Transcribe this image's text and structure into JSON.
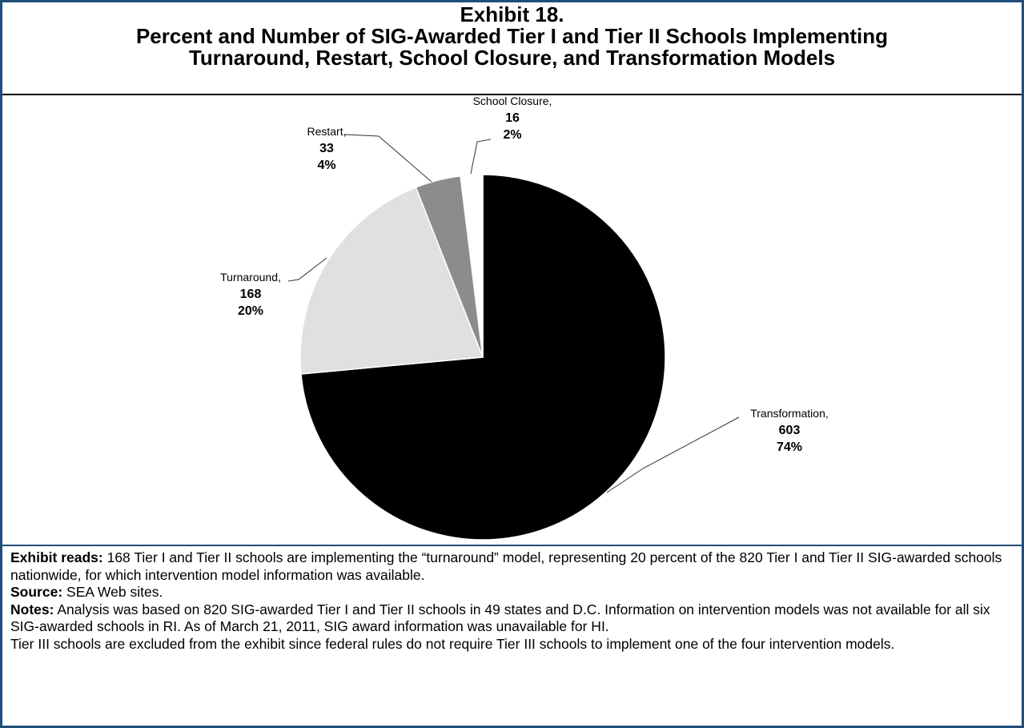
{
  "title": {
    "line1": "Exhibit 18.",
    "line2": "Percent and Number of SIG-Awarded Tier I and Tier II Schools Implementing",
    "line3": "Turnaround, Restart, School Closure, and Transformation Models"
  },
  "chart_data": {
    "type": "pie",
    "slices": [
      {
        "label": "Transformation,",
        "count": "603",
        "percent": "74%",
        "value": 603,
        "color": "#000000"
      },
      {
        "label": "Turnaround,",
        "count": "168",
        "percent": "20%",
        "value": 168,
        "color": "#e0e0e0"
      },
      {
        "label": "Restart,",
        "count": "33",
        "percent": "4%",
        "value": 33,
        "color": "#8c8c8c"
      },
      {
        "label": "School Closure,",
        "count": "16",
        "percent": "2%",
        "value": 16,
        "color": "#ffffff"
      }
    ]
  },
  "notes": {
    "reads_label": "Exhibit reads:",
    "reads_text": " 168 Tier I and Tier II schools are implementing the “turnaround” model, representing 20 percent of the 820 Tier I and Tier II SIG-awarded schools nationwide, for which intervention model information was available.",
    "source_label": "Source:",
    "source_text": " SEA Web sites.",
    "notes_label": "Notes:",
    "notes_text": " Analysis was based on 820 SIG-awarded Tier I and Tier II schools in 49 states and D.C. Information on intervention models was not available for all six SIG-awarded schools in RI. As of March 21, 2011, SIG award information was unavailable for HI.",
    "tier3_text": "Tier III schools are excluded from the exhibit since federal rules do not require Tier III schools to implement one of the four intervention models."
  }
}
